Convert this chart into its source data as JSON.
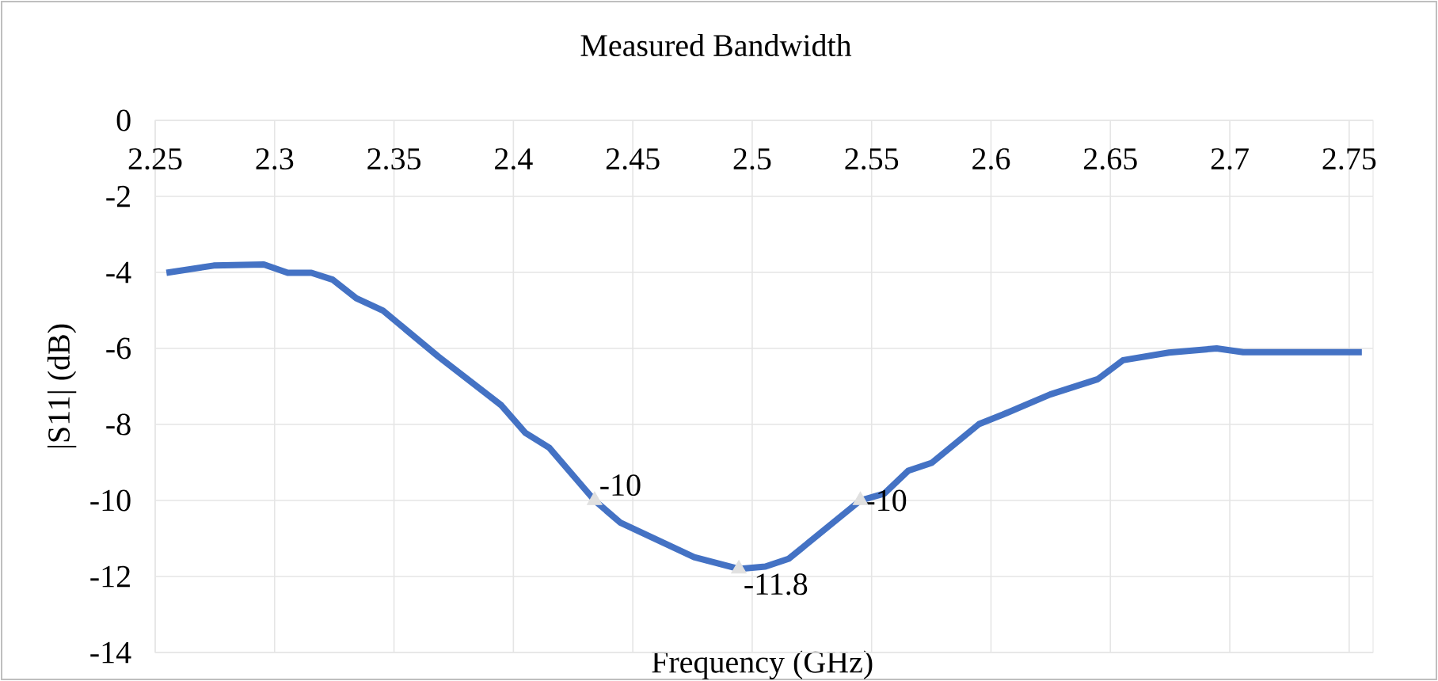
{
  "chart_data": {
    "type": "line",
    "title": "Measured Bandwidth",
    "xlabel": "Frequency (GHz)",
    "ylabel": "|S11| (dB)",
    "x": [
      2.2547,
      2.2745,
      2.2955,
      2.3055,
      2.3154,
      2.3243,
      2.3342,
      2.3453,
      2.3685,
      2.395,
      2.405,
      2.415,
      2.434,
      2.4447,
      2.4757,
      2.4944,
      2.5055,
      2.5154,
      2.5453,
      2.5553,
      2.5653,
      2.5752,
      2.595,
      2.605,
      2.6248,
      2.6447,
      2.6553,
      2.6745,
      2.6945,
      2.7056,
      2.7553
    ],
    "series": [
      {
        "color": "#4472c4",
        "values": [
          -4.01,
          -3.82,
          -3.79,
          -4.01,
          -4.01,
          -4.19,
          -4.68,
          -5.0,
          -6.21,
          -7.5,
          -8.22,
          -8.61,
          -10.0,
          -10.58,
          -11.49,
          -11.8,
          -11.74,
          -11.53,
          -10.0,
          -9.82,
          -9.22,
          -9.01,
          -7.99,
          -7.74,
          -7.21,
          -6.81,
          -6.31,
          -6.11,
          -6.0,
          -6.1,
          -6.1
        ]
      }
    ],
    "annotations": [
      {
        "text": "-10",
        "x": 2.434,
        "y": -10.0
      },
      {
        "text": "-11.8",
        "x": 2.4944,
        "y": -11.8
      },
      {
        "text": "-10",
        "x": 2.5453,
        "y": -10.0
      }
    ],
    "xlim": [
      2.25,
      2.76
    ],
    "ylim": [
      -14,
      0
    ],
    "xticks": [
      2.25,
      2.3,
      2.35,
      2.4,
      2.45,
      2.5,
      2.55,
      2.6,
      2.65,
      2.7,
      2.75
    ],
    "yticks": [
      0,
      -2,
      -4,
      -6,
      -8,
      -10,
      -12,
      -14
    ],
    "grid": true,
    "marker": "none",
    "line_style": "solid"
  }
}
